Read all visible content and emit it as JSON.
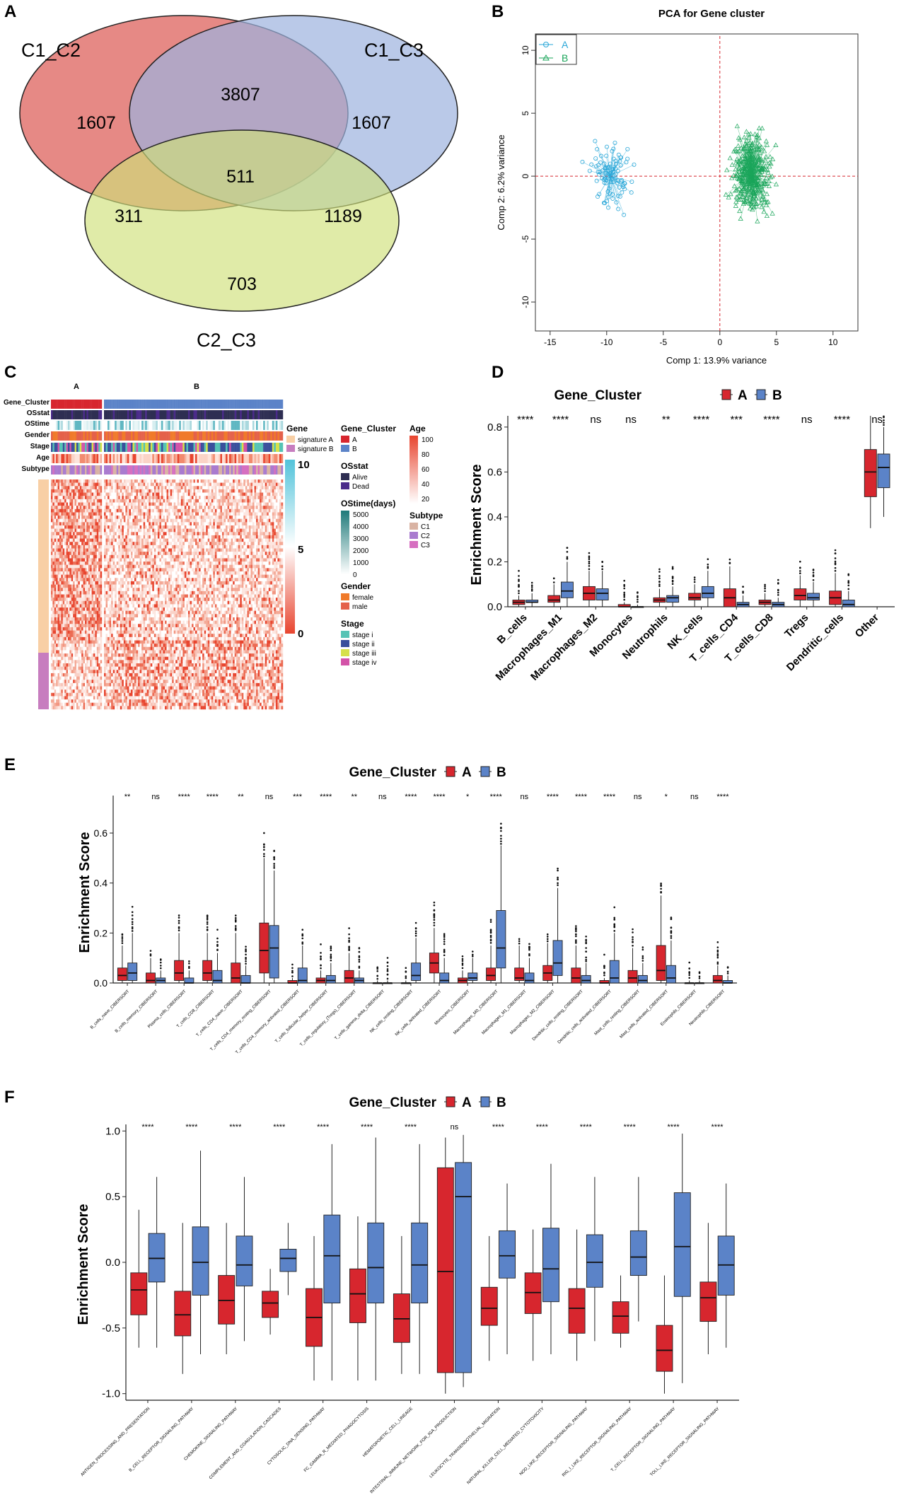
{
  "colors": {
    "A": "#d7262e",
    "B": "#5b83c8",
    "pcaA": "#2aa7d8",
    "pcaB": "#1aa55a",
    "venn1": "#e06b66",
    "venn2": "#9db2de",
    "venn3": "#cfe07a"
  },
  "panels": {
    "a": "A",
    "b": "B",
    "c": "C",
    "d": "D",
    "e": "E",
    "f": "F"
  },
  "venn": {
    "labels": [
      "C1_C2",
      "C1_C3",
      "C2_C3"
    ],
    "counts": {
      "only12": "1607",
      "only13": "1607",
      "only23": "703",
      "i12": "3807",
      "i123": "511",
      "i12_23": "311",
      "i13_23": "1189"
    }
  },
  "pca": {
    "title": "PCA for Gene cluster",
    "xlabel": "Comp 1: 13.9% variance",
    "ylabel": "Comp 2: 6.2% variance",
    "xticks": [
      "-15",
      "-10",
      "-5",
      "0",
      "5",
      "10"
    ],
    "yticks": [
      "-10",
      "-5",
      "0",
      "5",
      "10"
    ],
    "legend": [
      "A",
      "B"
    ]
  },
  "heatmap": {
    "top_labels": [
      "A",
      "B"
    ],
    "row_labels": [
      "Gene_Cluster",
      "OSstat",
      "OStime",
      "Gender",
      "Stage",
      "Age",
      "Subtype"
    ],
    "legends": {
      "gene_title": "Gene",
      "gene_items": [
        "signature A",
        "signature B"
      ],
      "gc_title": "Gene_Cluster",
      "gc_items": [
        "A",
        "B"
      ],
      "age_title": "Age",
      "age_ticks": [
        "100",
        "80",
        "60",
        "40",
        "20"
      ],
      "os_title": "OSstat",
      "os_items": [
        "Alive",
        "Dead"
      ],
      "ostime_title": "OStime(days)",
      "ostime_ticks": [
        "5000",
        "4000",
        "3000",
        "2000",
        "1000",
        "0"
      ],
      "subtype_title": "Subtype",
      "subtype_items": [
        "C1",
        "C2",
        "C3"
      ],
      "gender_title": "Gender",
      "gender_items": [
        "female",
        "male"
      ],
      "stage_title": "Stage",
      "stage_items": [
        "stage i",
        "stage ii",
        "stage iii",
        "stage iv"
      ],
      "scale_ticks": [
        "10",
        "5",
        "0"
      ]
    }
  },
  "legend_common": {
    "title": "Gene_Cluster",
    "a": "A",
    "b": "B"
  },
  "chart_data": [
    {
      "type": "box",
      "panel": "D",
      "ylabel": "Enrichment Score",
      "ylim": [
        0,
        0.85
      ],
      "yticks": [
        "0.0",
        "0.2",
        "0.4",
        "0.6",
        "0.8"
      ],
      "categories": [
        "B_cells",
        "Macrophages_M1",
        "Macrophages_M2",
        "Monocytes",
        "Neutrophils",
        "NK_cells",
        "T_cells_CD4",
        "T_cells_CD8",
        "Tregs",
        "Dendritic_cells",
        "Other"
      ],
      "significance": [
        "****",
        "****",
        "ns",
        "ns",
        "**",
        "****",
        "***",
        "****",
        "ns",
        "****",
        "ns"
      ],
      "series": [
        {
          "name": "A",
          "boxes": [
            [
              0,
              0.01,
              0.02,
              0.03,
              0.05
            ],
            [
              0,
              0.02,
              0.03,
              0.05,
              0.1
            ],
            [
              0,
              0.03,
              0.06,
              0.09,
              0.16
            ],
            [
              0,
              0,
              0,
              0.01,
              0.02
            ],
            [
              0,
              0.02,
              0.03,
              0.04,
              0.08
            ],
            [
              0,
              0.03,
              0.04,
              0.06,
              0.1
            ],
            [
              0,
              0,
              0.04,
              0.08,
              0.18
            ],
            [
              0,
              0.01,
              0.02,
              0.03,
              0.06
            ],
            [
              0,
              0.03,
              0.05,
              0.08,
              0.14
            ],
            [
              0,
              0.01,
              0.04,
              0.07,
              0.15
            ],
            [
              0.35,
              0.49,
              0.6,
              0.7,
              0.85
            ]
          ]
        },
        {
          "name": "B",
          "boxes": [
            [
              0,
              0.02,
              0.02,
              0.03,
              0.06
            ],
            [
              0,
              0.04,
              0.07,
              0.11,
              0.2
            ],
            [
              0,
              0.03,
              0.06,
              0.08,
              0.16
            ],
            [
              0,
              0,
              0,
              0,
              0.01
            ],
            [
              0,
              0.02,
              0.04,
              0.05,
              0.09
            ],
            [
              0,
              0.04,
              0.06,
              0.09,
              0.16
            ],
            [
              0,
              0,
              0.01,
              0.02,
              0.05
            ],
            [
              0,
              0,
              0.01,
              0.02,
              0.04
            ],
            [
              0,
              0.03,
              0.04,
              0.06,
              0.11
            ],
            [
              0,
              0,
              0.01,
              0.03,
              0.07
            ],
            [
              0.4,
              0.53,
              0.62,
              0.68,
              0.8
            ]
          ]
        }
      ]
    },
    {
      "type": "box",
      "panel": "E",
      "ylabel": "Enrichment Score",
      "ylim": [
        0,
        0.75
      ],
      "yticks": [
        "0.0",
        "0.2",
        "0.4",
        "0.6"
      ],
      "categories": [
        "B_cells_naive_CIBERSORT",
        "B_cells_memory_CIBERSORT",
        "Plasma_cells_CIBERSORT",
        "T_cells_CD8_CIBERSORT",
        "T_cells_CD4_naive_CIBERSORT",
        "T_cells_CD4_memory_resting_CIBERSORT",
        "T_cells_CD4_memory_activated_CIBERSORT",
        "T_cells_follicular_helper_CIBERSORT",
        "T_cells_regulatory_(Tregs)_CIBERSORT",
        "T_cells_gamma_delta_CIBERSORT",
        "NK_cells_resting_CIBERSORT",
        "NK_cells_activated_CIBERSORT",
        "Monocytes_CIBERSORT",
        "Macrophages_M0_CIBERSORT",
        "Macrophages_M1_CIBERSORT",
        "Macrophages_M2_CIBERSORT",
        "Dendritic_cells_resting_CIBERSORT",
        "Dendritic_cells_activated_CIBERSORT",
        "Mast_cells_resting_CIBERSORT",
        "Mast_cells_activated_CIBERSORT",
        "Eosinophils_CIBERSORT",
        "Neutrophils_CIBERSORT"
      ],
      "significance": [
        "**",
        "ns",
        "****",
        "****",
        "**",
        "ns",
        "***",
        "****",
        "**",
        "ns",
        "****",
        "****",
        "*",
        "****",
        "ns",
        "****",
        "****",
        "****",
        "ns",
        "*",
        "ns",
        "****"
      ],
      "series": [
        {
          "name": "A",
          "boxes": [
            [
              0,
              0.01,
              0.03,
              0.06,
              0.15
            ],
            [
              0,
              0,
              0.01,
              0.04,
              0.1
            ],
            [
              0,
              0.01,
              0.04,
              0.09,
              0.2
            ],
            [
              0,
              0.01,
              0.04,
              0.09,
              0.2
            ],
            [
              0,
              0,
              0.02,
              0.08,
              0.2
            ],
            [
              0,
              0.04,
              0.13,
              0.24,
              0.5
            ],
            [
              0,
              0,
              0,
              0.01,
              0.02
            ],
            [
              0,
              0,
              0.01,
              0.02,
              0.05
            ],
            [
              0,
              0,
              0.02,
              0.05,
              0.12
            ],
            [
              0,
              0,
              0,
              0,
              0.01
            ],
            [
              0,
              0,
              0,
              0,
              0.01
            ],
            [
              0,
              0.04,
              0.08,
              0.12,
              0.22
            ],
            [
              0,
              0,
              0.01,
              0.02,
              0.05
            ],
            [
              0,
              0.01,
              0.03,
              0.06,
              0.15
            ],
            [
              0,
              0.01,
              0.02,
              0.06,
              0.15
            ],
            [
              0,
              0.01,
              0.04,
              0.07,
              0.16
            ],
            [
              0,
              0,
              0.02,
              0.06,
              0.15
            ],
            [
              0,
              0,
              0,
              0.01,
              0.02
            ],
            [
              0,
              0,
              0.02,
              0.05,
              0.14
            ],
            [
              0,
              0.01,
              0.05,
              0.15,
              0.35
            ],
            [
              0,
              0,
              0,
              0,
              0.01
            ],
            [
              0,
              0,
              0.01,
              0.03,
              0.07
            ]
          ]
        },
        {
          "name": "B",
          "boxes": [
            [
              0,
              0.01,
              0.04,
              0.08,
              0.2
            ],
            [
              0,
              0,
              0.01,
              0.02,
              0.05
            ],
            [
              0,
              0,
              0,
              0.02,
              0.05
            ],
            [
              0,
              0,
              0.01,
              0.05,
              0.12
            ],
            [
              0,
              0,
              0,
              0.03,
              0.07
            ],
            [
              0,
              0.02,
              0.14,
              0.23,
              0.45
            ],
            [
              0,
              0,
              0.01,
              0.06,
              0.15
            ],
            [
              0,
              0,
              0.01,
              0.03,
              0.08
            ],
            [
              0,
              0,
              0.01,
              0.02,
              0.05
            ],
            [
              0,
              0,
              0,
              0,
              0.01
            ],
            [
              0,
              0.01,
              0.03,
              0.08,
              0.18
            ],
            [
              0,
              0,
              0.01,
              0.04,
              0.1
            ],
            [
              0,
              0.01,
              0.02,
              0.04,
              0.1
            ],
            [
              0,
              0.06,
              0.14,
              0.29,
              0.55
            ],
            [
              0,
              0,
              0.01,
              0.04,
              0.1
            ],
            [
              0,
              0.03,
              0.08,
              0.17,
              0.38
            ],
            [
              0,
              0,
              0.01,
              0.03,
              0.08
            ],
            [
              0,
              0,
              0.02,
              0.09,
              0.2
            ],
            [
              0,
              0,
              0.01,
              0.03,
              0.08
            ],
            [
              0,
              0,
              0.02,
              0.07,
              0.17
            ],
            [
              0,
              0,
              0,
              0,
              0.01
            ],
            [
              0,
              0,
              0,
              0.01,
              0.03
            ]
          ]
        }
      ]
    },
    {
      "type": "box",
      "panel": "F",
      "ylabel": "Enrichment Score",
      "ylim": [
        -1.05,
        1.05
      ],
      "yticks": [
        "-1.0",
        "-0.5",
        "0.0",
        "0.5",
        "1.0"
      ],
      "categories": [
        "ANTIGEN_PROCESSING_AND_PRESENTATION",
        "B_CELL_RECEPTOR_SIGNALING_PATHWAY",
        "CHEMOKINE_SIGNALING_PATHWAY",
        "COMPLEMENT_AND_COAGULATION_CASCADES",
        "CYTOSOLIC_DNA_SENSING_PATHWAY",
        "FC_GAMMA_R_MEDIATED_PHAGOCYTOSIS",
        "HEMATOPOIETIC_CELL_LINEAGE",
        "INTESTINAL_IMMUNE_NETWORK_FOR_IGA_PRODUCTION",
        "LEUKOCYTE_TRANSENDOTHELIAL_MIGRATION",
        "NATURAL_KILLER_CELL_MEDIATED_CYTOTOXICITY",
        "NOD_LIKE_RECEPTOR_SIGNALING_PATHWAY",
        "RIG_I_LIKE_RECEPTOR_SIGNALING_PATHWAY",
        "T_CELL_RECEPTOR_SIGNALING_PATHWAY",
        "TOLL_LIKE_RECEPTOR_SIGNALING_PATHWAY"
      ],
      "significance": [
        "****",
        "****",
        "****",
        "****",
        "****",
        "****",
        "****",
        "ns",
        "****",
        "****",
        "****",
        "****",
        "****",
        "****"
      ],
      "series": [
        {
          "name": "A",
          "boxes": [
            [
              -0.65,
              -0.4,
              -0.21,
              -0.08,
              0.4
            ],
            [
              -0.85,
              -0.56,
              -0.4,
              -0.22,
              0.3
            ],
            [
              -0.7,
              -0.47,
              -0.29,
              -0.1,
              0.3
            ],
            [
              -0.55,
              -0.42,
              -0.31,
              -0.22,
              -0.05
            ],
            [
              -0.9,
              -0.64,
              -0.42,
              -0.2,
              0.2
            ],
            [
              -0.9,
              -0.46,
              -0.24,
              -0.05,
              0.35
            ],
            [
              -0.85,
              -0.61,
              -0.43,
              -0.24,
              0.2
            ],
            [
              -1.0,
              -0.84,
              -0.07,
              0.72,
              0.95
            ],
            [
              -0.75,
              -0.48,
              -0.35,
              -0.19,
              0.2
            ],
            [
              -0.75,
              -0.39,
              -0.23,
              -0.08,
              0.25
            ],
            [
              -0.75,
              -0.54,
              -0.35,
              -0.2,
              0.25
            ],
            [
              -0.65,
              -0.54,
              -0.41,
              -0.3,
              -0.1
            ],
            [
              -1.0,
              -0.83,
              -0.67,
              -0.48,
              -0.1
            ],
            [
              -0.7,
              -0.45,
              -0.27,
              -0.15,
              0.3
            ]
          ]
        },
        {
          "name": "B",
          "boxes": [
            [
              -0.65,
              -0.15,
              0.03,
              0.22,
              0.65
            ],
            [
              -0.7,
              -0.25,
              0.0,
              0.27,
              0.85
            ],
            [
              -0.6,
              -0.18,
              -0.02,
              0.2,
              0.65
            ],
            [
              -0.25,
              -0.07,
              0.03,
              0.1,
              0.3
            ],
            [
              -0.9,
              -0.31,
              0.05,
              0.36,
              0.9
            ],
            [
              -0.9,
              -0.31,
              -0.04,
              0.3,
              0.95
            ],
            [
              -0.85,
              -0.31,
              -0.02,
              0.3,
              0.9
            ],
            [
              -0.95,
              -0.84,
              0.5,
              0.76,
              0.97
            ],
            [
              -0.7,
              -0.12,
              0.05,
              0.24,
              0.6
            ],
            [
              -0.7,
              -0.3,
              -0.05,
              0.26,
              0.75
            ],
            [
              -0.6,
              -0.19,
              0.0,
              0.21,
              0.65
            ],
            [
              -0.45,
              -0.1,
              0.04,
              0.24,
              0.65
            ],
            [
              -0.92,
              -0.26,
              0.12,
              0.53,
              0.98
            ],
            [
              -0.65,
              -0.25,
              -0.02,
              0.2,
              0.6
            ]
          ]
        }
      ]
    }
  ]
}
